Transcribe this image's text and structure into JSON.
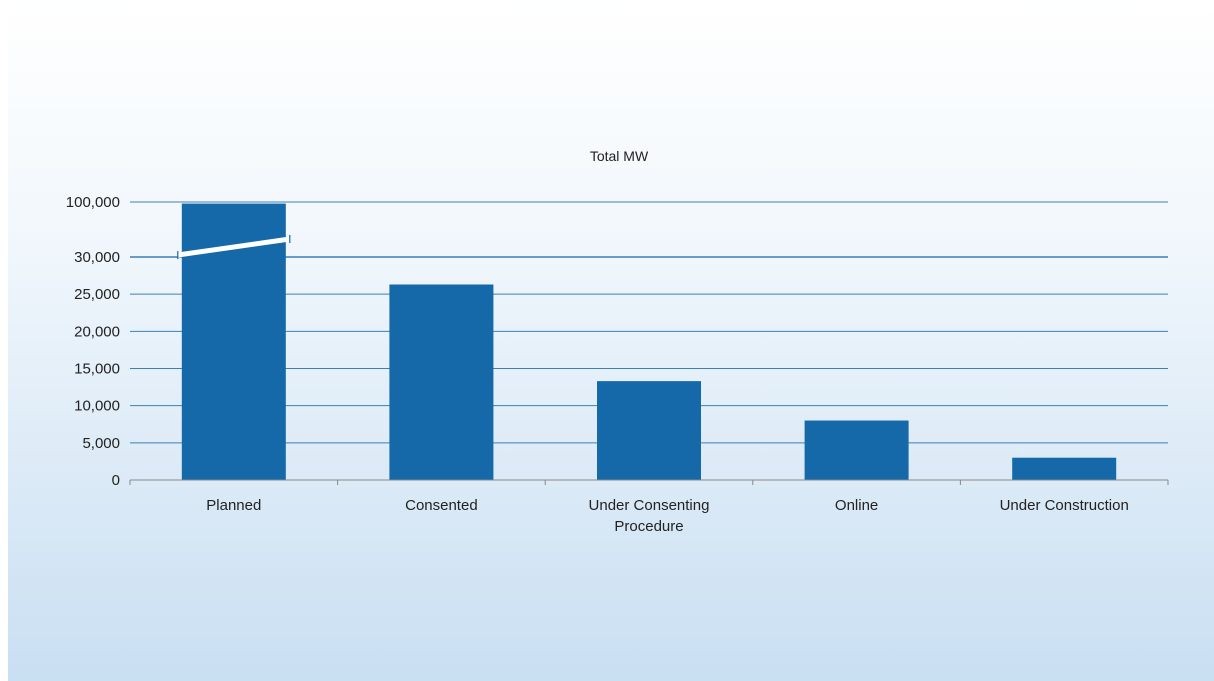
{
  "chart_data": {
    "type": "bar",
    "title": "Total MW",
    "xlabel": "",
    "ylabel": "",
    "categories": [
      [
        "Planned"
      ],
      [
        "Consented"
      ],
      [
        "Under Consenting",
        "Procedure"
      ],
      [
        "Online"
      ],
      [
        "Under Construction"
      ]
    ],
    "values": [
      98000,
      26300,
      13300,
      8000,
      3000
    ],
    "yticks": [
      "0",
      "5,000",
      "10,000",
      "15,000",
      "20,000",
      "25,000",
      "30,000",
      "100,000"
    ],
    "ylim": [
      0,
      100000
    ],
    "axis_break": {
      "from": 30000,
      "to": 100000,
      "marked_on": "Planned"
    },
    "grid": true,
    "legend": "none",
    "colors": {
      "bar": "#1569a8",
      "grid": "#3d7fb5",
      "axis": "#888888"
    }
  }
}
